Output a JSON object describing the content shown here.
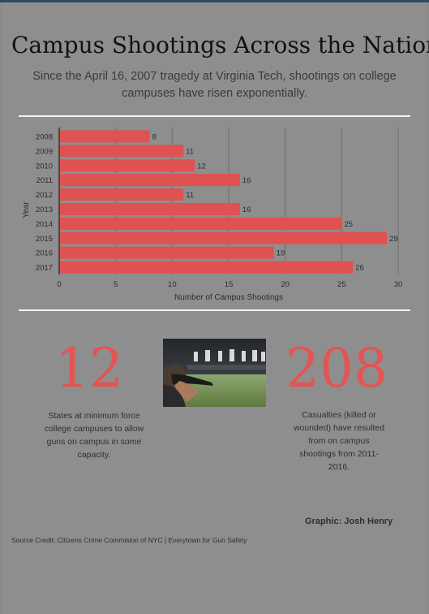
{
  "header": {
    "title": "Campus Shootings Across the Nation",
    "subtitle": "Since the April 16, 2007 tragedy at Virginia Tech, shootings on college campuses have risen exponentially."
  },
  "chart_data": {
    "type": "bar",
    "orientation": "horizontal",
    "categories": [
      "2008",
      "2009",
      "2010",
      "2011",
      "2012",
      "2013",
      "2014",
      "2015",
      "2016",
      "2017"
    ],
    "values": [
      8,
      11,
      12,
      16,
      11,
      16,
      25,
      29,
      19,
      26
    ],
    "xlabel": "Number of Campus Shootings",
    "ylabel": "Year",
    "xlim": [
      0,
      30
    ],
    "xticks": [
      0,
      5,
      10,
      15,
      20,
      25,
      30
    ],
    "grid": "vertical",
    "bar_color": "#e05151",
    "data_labels": true
  },
  "stats": {
    "left": {
      "number": "12",
      "description": "States at minimum force college campuses to allow guns on campus in some capacity."
    },
    "right": {
      "number": "208",
      "description": "Casualties (killed or wounded) have resulted from on campus shootings from 2011-2016."
    }
  },
  "photo": {
    "subject": "person aiming a rifle at a shooting range"
  },
  "credits": {
    "graphic": "Graphic: Josh Henry",
    "source": "Source Credit: Citizens Crime Commision of NYC | Everytown for Gun Safety"
  },
  "colors": {
    "background": "#8e8e8e",
    "accent": "#e35454",
    "bar": "#e05151",
    "divider": "#f4f4f4"
  }
}
